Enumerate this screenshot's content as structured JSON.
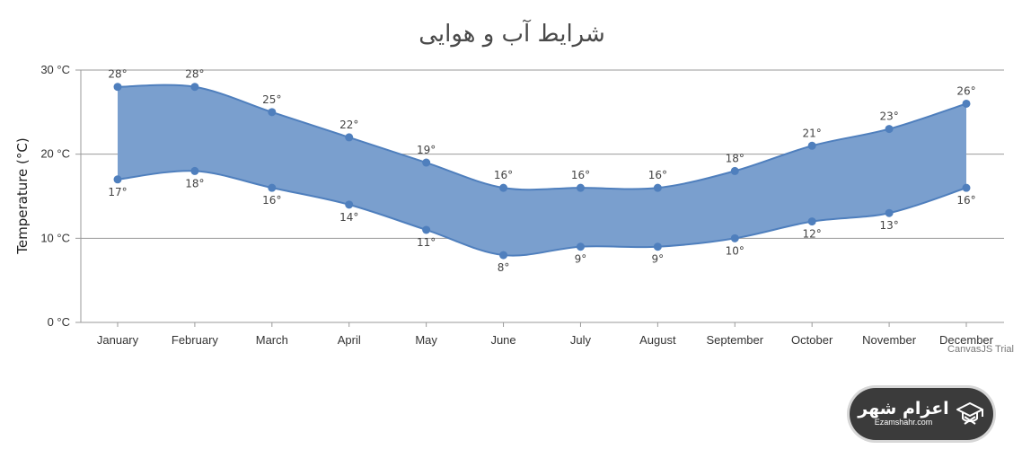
{
  "chart_data": {
    "type": "range-area",
    "title": "شرایط آب و هوایی",
    "ylabel": "Temperature (°C)",
    "xlabel": "",
    "y_tick_labels": [
      "0 °C",
      "10 °C",
      "20 °C",
      "30 °C"
    ],
    "y_ticks": [
      0,
      10,
      20,
      30
    ],
    "ylim": [
      0,
      30
    ],
    "grid": true,
    "categories": [
      "January",
      "February",
      "March",
      "April",
      "May",
      "June",
      "July",
      "August",
      "September",
      "October",
      "November",
      "December"
    ],
    "series": [
      {
        "high": [
          28,
          28,
          25,
          22,
          19,
          16,
          16,
          16,
          18,
          21,
          23,
          26
        ],
        "low": [
          17,
          18,
          16,
          14,
          11,
          8,
          9,
          9,
          10,
          12,
          13,
          16
        ],
        "high_labels": [
          "28°",
          "28°",
          "25°",
          "22°",
          "19°",
          "16°",
          "16°",
          "16°",
          "18°",
          "21°",
          "23°",
          "26°"
        ],
        "low_labels": [
          "17°",
          "18°",
          "16°",
          "14°",
          "11°",
          "8°",
          "9°",
          "9°",
          "10°",
          "12°",
          "13°",
          "16°"
        ]
      }
    ],
    "credit": "CanvasJS Trial"
  },
  "colors": {
    "fill": "#7a9fce",
    "line": "#4f7fbd",
    "marker": "#4f7fbd",
    "grid": "#9a9a9a",
    "badge": "#3b3b3b"
  },
  "logo": {
    "name": "اعزام شهر",
    "domain": "Ezamshahr.com",
    "icon": "graduation-cap-icon"
  }
}
